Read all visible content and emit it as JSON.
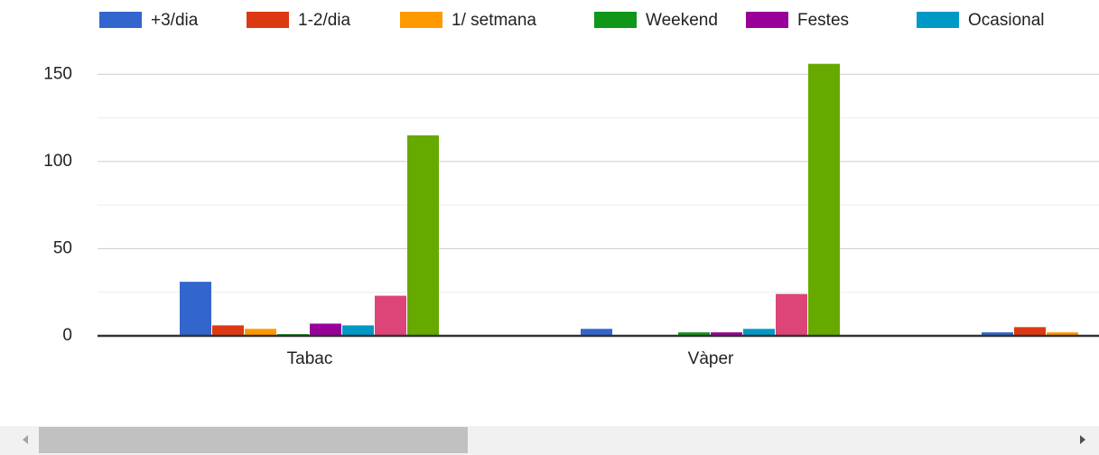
{
  "chart_data": {
    "type": "bar",
    "categories": [
      "Tabac",
      "Vàper",
      null
    ],
    "series": [
      {
        "name": "+3/dia",
        "color": "#3366cc",
        "values": [
          31,
          4,
          2
        ]
      },
      {
        "name": "1-2/dia",
        "color": "#dc3912",
        "values": [
          6,
          0,
          5
        ]
      },
      {
        "name": "1/ setmana",
        "color": "#ff9900",
        "values": [
          4,
          0,
          2
        ]
      },
      {
        "name": "Weekend",
        "color": "#109618",
        "values": [
          1,
          2,
          null
        ]
      },
      {
        "name": "Festes",
        "color": "#990099",
        "values": [
          7,
          2,
          null
        ]
      },
      {
        "name": "Ocasional",
        "color": "#0099c6",
        "values": [
          6,
          4,
          null
        ]
      },
      {
        "name": null,
        "color": "#dd4477",
        "values": [
          23,
          24,
          null
        ]
      },
      {
        "name": null,
        "color": "#66aa00",
        "values": [
          115,
          156,
          null
        ]
      }
    ],
    "ylim": [
      0,
      175
    ],
    "yticks": [
      0,
      50,
      100,
      150
    ],
    "minor_yticks": [
      25,
      75,
      125
    ],
    "grid": true
  }
}
